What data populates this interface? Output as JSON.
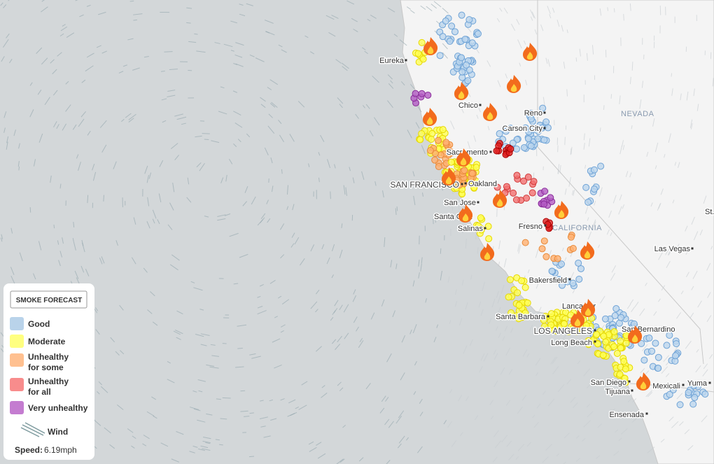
{
  "map": {
    "labels": [
      "Eureka",
      "Chico",
      "Reno",
      "Carson City",
      "NEVADA",
      "Sacramento",
      "SAN FRANCISCO",
      "Oakland",
      "San Jose",
      "Santa Cruz",
      "Salinas",
      "Fresno",
      "CALIFORNIA",
      "Las Vegas",
      "St.",
      "Bakersfield",
      "Lancaster",
      "Santa Barbara",
      "LOS ANGELES",
      "Long Beach",
      "San Bernardino",
      "San Diego",
      "Tijuana",
      "Mexicali",
      "Yuma",
      "Ensenada"
    ]
  },
  "legend": {
    "button": "SMOKE FORECAST",
    "items": [
      {
        "label": [
          "Good"
        ],
        "color": "#b9d3ea"
      },
      {
        "label": [
          "Moderate"
        ],
        "color": "#ffff80"
      },
      {
        "label": [
          "Unhealthy",
          "for some"
        ],
        "color": "#ffc090"
      },
      {
        "label": [
          "Unhealthy",
          "for all"
        ],
        "color": "#f88c8c"
      },
      {
        "label": [
          "Very unhealthy"
        ],
        "color": "#c47cd0"
      }
    ],
    "wind": "Wind",
    "speed_label": "Speed:",
    "speed_value": "6.19mph"
  }
}
